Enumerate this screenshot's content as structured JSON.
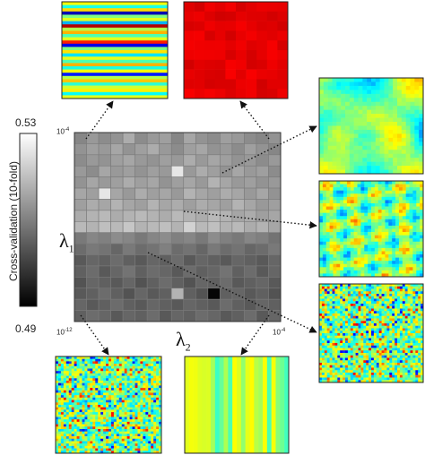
{
  "chart_data": {
    "type": "heatmap",
    "title": "",
    "xlabel": "λ2",
    "ylabel": "λ1",
    "x_ticks": [
      "10^-12",
      "10^-4"
    ],
    "y_ticks": [
      "10^-4",
      "10^-12"
    ],
    "colorbar": {
      "label": "Cross-validation (10-fold)",
      "min": 0.49,
      "max": 0.53,
      "min_label": "0.49",
      "max_label": "0.53",
      "colormap": "gray"
    },
    "grid_size": [
      17,
      17
    ],
    "values": [
      [
        0.511,
        0.514,
        0.512,
        0.513,
        0.517,
        0.512,
        0.514,
        0.515,
        0.511,
        0.516,
        0.513,
        0.512,
        0.515,
        0.514,
        0.512,
        0.511,
        0.513
      ],
      [
        0.513,
        0.515,
        0.514,
        0.516,
        0.513,
        0.515,
        0.517,
        0.514,
        0.512,
        0.515,
        0.516,
        0.513,
        0.514,
        0.512,
        0.515,
        0.513,
        0.511
      ],
      [
        0.512,
        0.514,
        0.513,
        0.515,
        0.516,
        0.514,
        0.513,
        0.515,
        0.514,
        0.517,
        0.514,
        0.516,
        0.515,
        0.513,
        0.514,
        0.512,
        0.514
      ],
      [
        0.514,
        0.512,
        0.516,
        0.514,
        0.515,
        0.513,
        0.515,
        0.514,
        0.526,
        0.514,
        0.517,
        0.515,
        0.513,
        0.516,
        0.514,
        0.515,
        0.512
      ],
      [
        0.513,
        0.516,
        0.514,
        0.515,
        0.517,
        0.515,
        0.516,
        0.513,
        0.515,
        0.516,
        0.514,
        0.518,
        0.516,
        0.514,
        0.515,
        0.513,
        0.514
      ],
      [
        0.516,
        0.515,
        0.526,
        0.516,
        0.514,
        0.517,
        0.515,
        0.516,
        0.514,
        0.518,
        0.516,
        0.515,
        0.517,
        0.516,
        0.514,
        0.516,
        0.513
      ],
      [
        0.515,
        0.517,
        0.516,
        0.518,
        0.516,
        0.515,
        0.518,
        0.516,
        0.517,
        0.515,
        0.517,
        0.516,
        0.515,
        0.518,
        0.516,
        0.514,
        0.515
      ],
      [
        0.517,
        0.518,
        0.519,
        0.517,
        0.518,
        0.519,
        0.518,
        0.517,
        0.519,
        0.518,
        0.517,
        0.519,
        0.518,
        0.516,
        0.517,
        0.515,
        0.516
      ],
      [
        0.519,
        0.518,
        0.52,
        0.519,
        0.521,
        0.518,
        0.519,
        0.52,
        0.518,
        0.523,
        0.519,
        0.52,
        0.518,
        0.519,
        0.517,
        0.518,
        0.516
      ],
      [
        0.509,
        0.511,
        0.51,
        0.512,
        0.511,
        0.509,
        0.511,
        0.512,
        0.51,
        0.511,
        0.509,
        0.512,
        0.51,
        0.509,
        0.511,
        0.51,
        0.508
      ],
      [
        0.507,
        0.509,
        0.508,
        0.506,
        0.509,
        0.507,
        0.508,
        0.51,
        0.507,
        0.508,
        0.506,
        0.509,
        0.507,
        0.508,
        0.506,
        0.507,
        0.509
      ],
      [
        0.504,
        0.506,
        0.505,
        0.507,
        0.505,
        0.504,
        0.506,
        0.505,
        0.507,
        0.504,
        0.506,
        0.505,
        0.504,
        0.506,
        0.505,
        0.504,
        0.506
      ],
      [
        0.505,
        0.507,
        0.504,
        0.506,
        0.508,
        0.505,
        0.507,
        0.506,
        0.504,
        0.507,
        0.505,
        0.506,
        0.508,
        0.505,
        0.507,
        0.504,
        0.506
      ],
      [
        0.503,
        0.506,
        0.505,
        0.504,
        0.506,
        0.503,
        0.505,
        0.507,
        0.505,
        0.503,
        0.506,
        0.505,
        0.507,
        0.504,
        0.505,
        0.506,
        0.504
      ],
      [
        0.504,
        0.505,
        0.507,
        0.505,
        0.503,
        0.506,
        0.504,
        0.505,
        0.518,
        0.505,
        0.503,
        0.491,
        0.505,
        0.506,
        0.504,
        0.505,
        0.503
      ],
      [
        0.506,
        0.504,
        0.505,
        0.507,
        0.505,
        0.504,
        0.506,
        0.505,
        0.504,
        0.506,
        0.505,
        0.504,
        0.507,
        0.505,
        0.504,
        0.506,
        0.505
      ],
      [
        0.505,
        0.507,
        0.506,
        0.504,
        0.506,
        0.505,
        0.507,
        0.504,
        0.506,
        0.505,
        0.507,
        0.506,
        0.504,
        0.505,
        0.507,
        0.504,
        0.506
      ]
    ],
    "insets": [
      {
        "id": "top-left",
        "pattern": "horizontal-stripes",
        "colormap": "jet"
      },
      {
        "id": "top-right",
        "pattern": "uniform-red",
        "colormap": "jet"
      },
      {
        "id": "right-1",
        "pattern": "smooth-blobs",
        "colormap": "jet"
      },
      {
        "id": "right-2",
        "pattern": "medium-blobs",
        "colormap": "jet"
      },
      {
        "id": "right-3",
        "pattern": "fine-noise",
        "colormap": "jet"
      },
      {
        "id": "bottom-left",
        "pattern": "fine-noise",
        "colormap": "jet"
      },
      {
        "id": "bottom-right",
        "pattern": "vertical-stripes",
        "colormap": "jet"
      }
    ]
  }
}
